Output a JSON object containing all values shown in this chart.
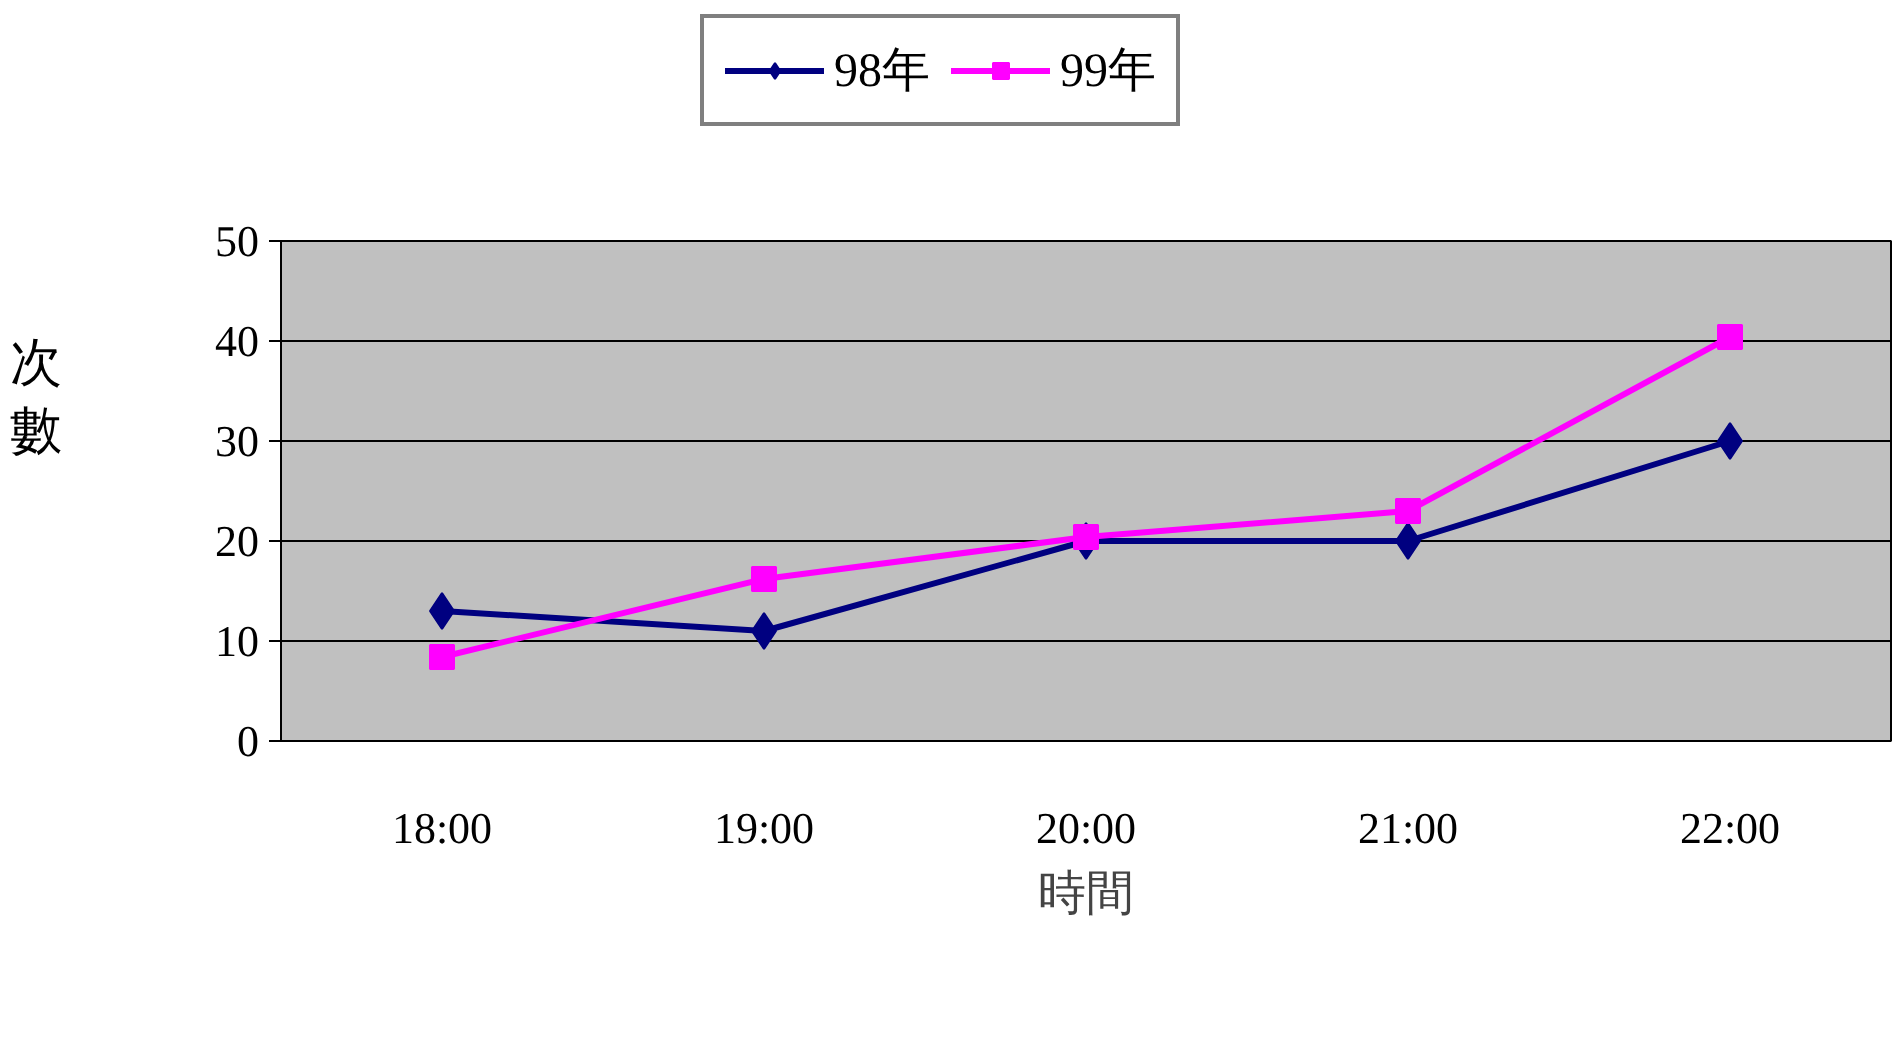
{
  "chart_data": {
    "type": "line",
    "xlabel": "時間",
    "ylabel": "次數",
    "categories": [
      "18:00",
      "19:00",
      "20:00",
      "21:00",
      "22:00"
    ],
    "series": [
      {
        "name": "98年",
        "color": "#000080",
        "marker": "diamond",
        "values": [
          13,
          11,
          20,
          20,
          30
        ]
      },
      {
        "name": "99年",
        "color": "#ff00ff",
        "marker": "square",
        "values": [
          8.4,
          16.2,
          20.4,
          23,
          40.4
        ]
      }
    ],
    "ylim": [
      0,
      50
    ],
    "yticks": [
      0,
      10,
      20,
      30,
      40,
      50
    ],
    "grid": "y",
    "legend": "top",
    "line_style": "solid"
  }
}
